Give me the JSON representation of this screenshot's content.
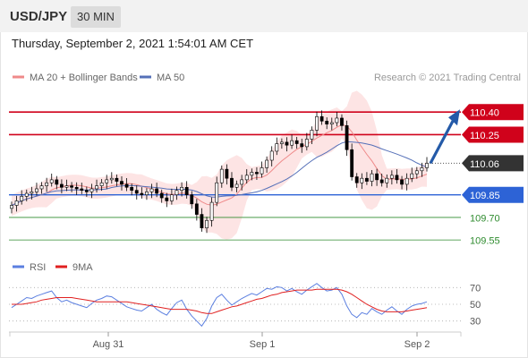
{
  "header": {
    "symbol": "USD/JPY",
    "timeframe": "30 MIN",
    "timestamp": "Thursday, September 2, 2021 1:54:01 AM CET"
  },
  "legend": {
    "ma20_label": "MA 20 + Bollinger Bands",
    "ma50_label": "MA 50",
    "credit": "Research © 2021 Trading Central",
    "rsi_label": "RSI",
    "rsi_ma_label": "9MA"
  },
  "colors": {
    "resistance": "#d0021b",
    "support": "#2d63d6",
    "target": "#2e8b2e",
    "arrow": "#245aa8",
    "ma20": "#ef8a8a",
    "bollinger_fill": "#fde4e4",
    "ma50": "#5570b8",
    "price_tag": "#333333",
    "rsi": "#5b7fe0",
    "rsi_ma": "#e02020",
    "candle_up": "#ffffff",
    "candle_down": "#000000"
  },
  "chart_data": [
    {
      "type": "candlestick",
      "y_range": [
        109.42,
        110.55
      ],
      "x_labels": [
        "Aug 31",
        "Sep 1",
        "Sep 2"
      ],
      "levels": [
        {
          "value": 110.4,
          "label": "110.40",
          "kind": "resistance"
        },
        {
          "value": 110.25,
          "label": "110.25",
          "kind": "resistance"
        },
        {
          "value": 110.06,
          "label": "110.06",
          "kind": "current"
        },
        {
          "value": 109.85,
          "label": "109.85",
          "kind": "support"
        },
        {
          "value": 109.7,
          "label": "109.70",
          "kind": "target"
        },
        {
          "value": 109.55,
          "label": "109.55",
          "kind": "target"
        }
      ],
      "close_series": [
        109.78,
        109.81,
        109.84,
        109.86,
        109.87,
        109.89,
        109.91,
        109.93,
        109.95,
        109.92,
        109.9,
        109.91,
        109.9,
        109.89,
        109.88,
        109.87,
        109.89,
        109.91,
        109.93,
        109.95,
        109.96,
        109.94,
        109.92,
        109.9,
        109.88,
        109.86,
        109.85,
        109.87,
        109.89,
        109.86,
        109.83,
        109.81,
        109.85,
        109.88,
        109.9,
        109.85,
        109.79,
        109.72,
        109.63,
        109.68,
        109.8,
        109.93,
        110.02,
        109.96,
        109.9,
        109.92,
        109.95,
        109.98,
        110.0,
        109.99,
        110.03,
        110.08,
        110.14,
        110.19,
        110.2,
        110.18,
        110.21,
        110.19,
        110.17,
        110.22,
        110.28,
        110.37,
        110.34,
        110.32,
        110.33,
        110.36,
        110.31,
        110.15,
        109.97,
        109.93,
        109.96,
        109.94,
        109.99,
        109.95,
        109.93,
        109.96,
        109.98,
        109.95,
        109.92,
        109.96,
        109.99,
        110.01,
        110.03,
        110.06
      ],
      "arrow": {
        "from": 110.06,
        "to": 110.4
      }
    },
    {
      "type": "line",
      "title": "RSI",
      "y_ticks": [
        70,
        50,
        30
      ],
      "y_range": [
        20,
        80
      ],
      "series": [
        {
          "name": "RSI",
          "values": [
            46,
            50,
            54,
            58,
            57,
            60,
            62,
            64,
            66,
            58,
            53,
            55,
            52,
            50,
            48,
            46,
            51,
            55,
            57,
            60,
            59,
            55,
            51,
            47,
            45,
            43,
            42,
            46,
            50,
            44,
            40,
            37,
            45,
            52,
            55,
            44,
            36,
            30,
            24,
            33,
            48,
            58,
            62,
            55,
            49,
            53,
            57,
            60,
            63,
            61,
            65,
            69,
            68,
            71,
            70,
            66,
            69,
            65,
            62,
            67,
            71,
            75,
            70,
            66,
            67,
            70,
            62,
            48,
            38,
            34,
            40,
            38,
            45,
            41,
            38,
            43,
            47,
            42,
            38,
            44,
            48,
            50,
            51,
            53
          ]
        },
        {
          "name": "9MA",
          "values": [
            50,
            50,
            50,
            51,
            52,
            53,
            55,
            56,
            57,
            58,
            58,
            58,
            58,
            57,
            56,
            55,
            54,
            53,
            53,
            53,
            53,
            53,
            53,
            53,
            52,
            51,
            50,
            49,
            48,
            47,
            46,
            45,
            44,
            44,
            44,
            44,
            43,
            42,
            40,
            39,
            39,
            41,
            43,
            45,
            47,
            48,
            50,
            52,
            54,
            56,
            57,
            59,
            61,
            62,
            64,
            65,
            66,
            67,
            67,
            67,
            67,
            68,
            68,
            68,
            68,
            68,
            67,
            65,
            62,
            58,
            54,
            50,
            47,
            44,
            42,
            41,
            41,
            41,
            41,
            42,
            43,
            44,
            45,
            46
          ]
        }
      ]
    }
  ]
}
